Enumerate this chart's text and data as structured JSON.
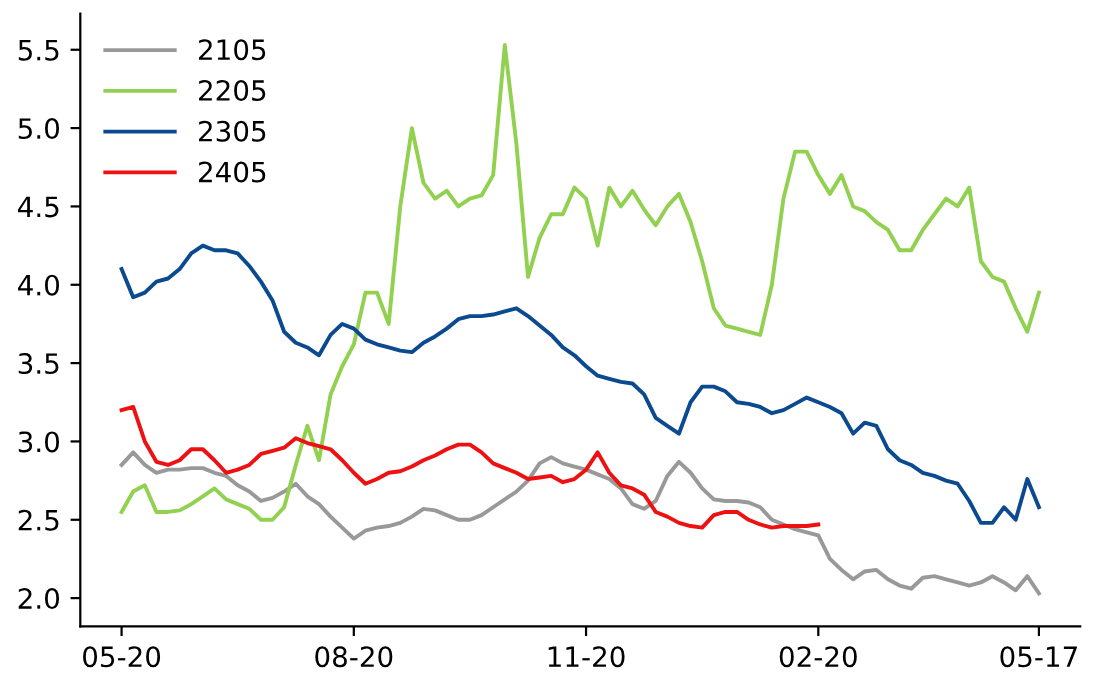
{
  "chart_data": {
    "type": "line",
    "categories": [
      "05-20",
      null,
      null,
      null,
      null,
      null,
      null,
      null,
      null,
      null,
      null,
      null,
      null,
      null,
      null,
      null,
      null,
      null,
      null,
      null,
      "08-20",
      null,
      null,
      null,
      null,
      null,
      null,
      null,
      null,
      null,
      null,
      null,
      null,
      null,
      null,
      null,
      null,
      null,
      null,
      null,
      "11-20",
      null,
      null,
      null,
      null,
      null,
      null,
      null,
      null,
      null,
      null,
      null,
      null,
      null,
      null,
      null,
      null,
      null,
      null,
      null,
      "02-20",
      null,
      null,
      null,
      null,
      null,
      null,
      null,
      null,
      null,
      null,
      null,
      null,
      null,
      null,
      null,
      null,
      null,
      null,
      "05-17"
    ],
    "ylim": [
      1.82,
      5.73
    ],
    "yticks": [
      {
        "value": 2,
        "label": "2.0"
      },
      {
        "value": 2.5,
        "label": "2.5"
      },
      {
        "value": 3,
        "label": "3.0"
      },
      {
        "value": 3.5,
        "label": "3.5"
      },
      {
        "value": 4,
        "label": "4.0"
      },
      {
        "value": 4.5,
        "label": "4.5"
      },
      {
        "value": 5,
        "label": "5.0"
      },
      {
        "value": 5.5,
        "label": "5.5"
      }
    ],
    "grid": false,
    "legend": "top left",
    "marker": "none",
    "line_style": "solid",
    "series": [
      {
        "name": "2105",
        "color": "#999999",
        "values": [
          2.85,
          2.93,
          2.85,
          2.8,
          2.82,
          2.82,
          2.83,
          2.83,
          2.8,
          2.78,
          2.72,
          2.68,
          2.62,
          2.64,
          2.68,
          2.73,
          2.65,
          2.6,
          2.52,
          2.45,
          2.38,
          2.43,
          2.45,
          2.46,
          2.48,
          2.52,
          2.57,
          2.56,
          2.53,
          2.5,
          2.5,
          2.53,
          2.58,
          2.63,
          2.68,
          2.75,
          2.86,
          2.9,
          2.86,
          2.84,
          2.82,
          2.79,
          2.76,
          2.7,
          2.6,
          2.57,
          2.62,
          2.78,
          2.87,
          2.8,
          2.7,
          2.63,
          2.62,
          2.62,
          2.61,
          2.58,
          2.5,
          2.47,
          2.44,
          2.42,
          2.4,
          2.25,
          2.18,
          2.12,
          2.17,
          2.18,
          2.12,
          2.08,
          2.06,
          2.13,
          2.14,
          2.12,
          2.1,
          2.08,
          2.1,
          2.14,
          2.1,
          2.05,
          2.14,
          2.03
        ]
      },
      {
        "name": "2205",
        "color": "#92d050",
        "values": [
          2.55,
          2.68,
          2.72,
          2.55,
          2.55,
          2.56,
          2.6,
          2.65,
          2.7,
          2.63,
          2.6,
          2.57,
          2.5,
          2.5,
          2.58,
          2.85,
          3.1,
          2.88,
          3.3,
          3.48,
          3.62,
          3.95,
          3.95,
          3.75,
          4.5,
          5.0,
          4.65,
          4.55,
          4.6,
          4.5,
          4.55,
          4.57,
          4.7,
          5.53,
          4.9,
          4.05,
          4.3,
          4.45,
          4.45,
          4.62,
          4.55,
          4.25,
          4.62,
          4.5,
          4.6,
          4.48,
          4.38,
          4.5,
          4.58,
          4.4,
          4.15,
          3.85,
          3.74,
          3.72,
          3.7,
          3.68,
          4.0,
          4.55,
          4.85,
          4.85,
          4.7,
          4.58,
          4.7,
          4.5,
          4.47,
          4.4,
          4.35,
          4.22,
          4.22,
          4.35,
          4.45,
          4.55,
          4.5,
          4.62,
          4.15,
          4.05,
          4.02,
          3.85,
          3.7,
          3.95
        ]
      },
      {
        "name": "2305",
        "color": "#0b4a8f",
        "values": [
          4.1,
          3.92,
          3.95,
          4.02,
          4.04,
          4.1,
          4.2,
          4.25,
          4.22,
          4.22,
          4.2,
          4.12,
          4.02,
          3.9,
          3.7,
          3.63,
          3.6,
          3.55,
          3.68,
          3.75,
          3.72,
          3.65,
          3.62,
          3.6,
          3.58,
          3.57,
          3.63,
          3.67,
          3.72,
          3.78,
          3.8,
          3.8,
          3.81,
          3.83,
          3.85,
          3.8,
          3.74,
          3.68,
          3.6,
          3.55,
          3.48,
          3.42,
          3.4,
          3.38,
          3.37,
          3.3,
          3.15,
          3.1,
          3.05,
          3.25,
          3.35,
          3.35,
          3.32,
          3.25,
          3.24,
          3.22,
          3.18,
          3.2,
          3.24,
          3.28,
          3.25,
          3.22,
          3.18,
          3.05,
          3.12,
          3.1,
          2.95,
          2.88,
          2.85,
          2.8,
          2.78,
          2.75,
          2.73,
          2.62,
          2.48,
          2.48,
          2.58,
          2.5,
          2.76,
          2.58
        ]
      },
      {
        "name": "2405",
        "color": "#ee1111",
        "values": [
          3.2,
          3.22,
          3.0,
          2.87,
          2.85,
          2.88,
          2.95,
          2.95,
          2.88,
          2.8,
          2.82,
          2.85,
          2.92,
          2.94,
          2.96,
          3.02,
          2.99,
          2.97,
          2.95,
          2.88,
          2.8,
          2.73,
          2.76,
          2.8,
          2.81,
          2.84,
          2.88,
          2.91,
          2.95,
          2.98,
          2.98,
          2.93,
          2.86,
          2.83,
          2.8,
          2.76,
          2.77,
          2.78,
          2.74,
          2.76,
          2.82,
          2.93,
          2.8,
          2.72,
          2.7,
          2.66,
          2.55,
          2.52,
          2.48,
          2.46,
          2.45,
          2.53,
          2.55,
          2.55,
          2.5,
          2.47,
          2.45,
          2.46,
          2.46,
          2.46,
          2.47,
          null,
          null,
          null,
          null,
          null,
          null,
          null,
          null,
          null,
          null,
          null,
          null,
          null,
          null,
          null,
          null,
          null,
          null,
          null
        ]
      }
    ]
  }
}
